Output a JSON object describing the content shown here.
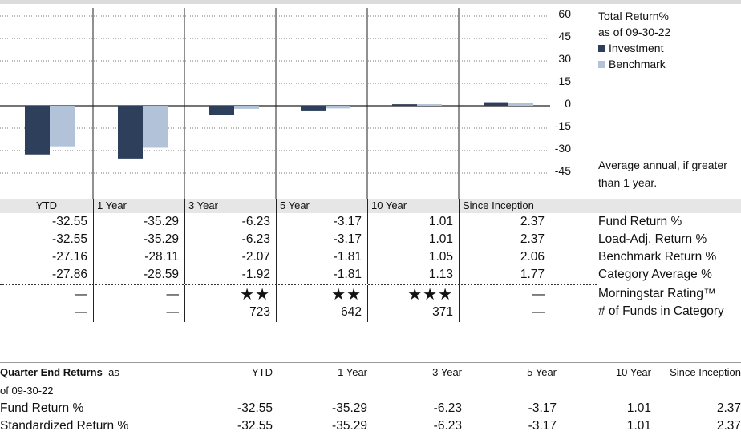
{
  "chart_data": {
    "type": "bar",
    "categories": [
      "YTD",
      "1 Year",
      "3 Year",
      "5 Year",
      "10 Year",
      "Since Inception"
    ],
    "series": [
      {
        "name": "Investment",
        "color": "#2e3f5c",
        "values": [
          -32.55,
          -35.29,
          -6.23,
          -3.17,
          1.01,
          2.37
        ]
      },
      {
        "name": "Benchmark",
        "color": "#b2c2d9",
        "values": [
          -27.16,
          -28.11,
          -2.07,
          -1.81,
          1.05,
          2.06
        ]
      }
    ],
    "yticks": [
      60,
      45,
      30,
      15,
      0,
      -15,
      -30,
      -45
    ],
    "ylim": [
      -45,
      60
    ],
    "title": "Total Return%",
    "subtitle": "as of 09-30-22",
    "note": "Average annual, if greater than 1 year."
  },
  "table": {
    "headers": [
      "YTD",
      "1 Year",
      "3 Year",
      "5 Year",
      "10 Year",
      "Since Inception"
    ],
    "rows": [
      {
        "label": "Fund Return %",
        "values": [
          "-32.55",
          "-35.29",
          "-6.23",
          "-3.17",
          "1.01",
          "2.37"
        ]
      },
      {
        "label": "Load-Adj. Return %",
        "values": [
          "-32.55",
          "-35.29",
          "-6.23",
          "-3.17",
          "1.01",
          "2.37"
        ]
      },
      {
        "label": "Benchmark Return %",
        "values": [
          "-27.16",
          "-28.11",
          "-2.07",
          "-1.81",
          "1.05",
          "2.06"
        ]
      },
      {
        "label": "Category Average %",
        "values": [
          "-27.86",
          "-28.59",
          "-1.92",
          "-1.81",
          "1.13",
          "1.77"
        ]
      }
    ],
    "rating": {
      "label": "Morningstar Rating™",
      "values": [
        "—",
        "—",
        "★★",
        "★★",
        "★★★",
        "—"
      ]
    },
    "funds": {
      "label": "# of Funds in Category",
      "values": [
        "—",
        "—",
        "723",
        "642",
        "371",
        "—"
      ]
    }
  },
  "quarter": {
    "title": "Quarter End Returns",
    "as_word": "as",
    "subtitle": "of 09-30-22",
    "headers": [
      "YTD",
      "1 Year",
      "3 Year",
      "5 Year",
      "10 Year",
      "Since Inception"
    ],
    "rows": [
      {
        "label": "Fund Return %",
        "values": [
          "-32.55",
          "-35.29",
          "-6.23",
          "-3.17",
          "1.01",
          "2.37"
        ]
      },
      {
        "label": "Standardized Return %",
        "values": [
          "-32.55",
          "-35.29",
          "-6.23",
          "-3.17",
          "1.01",
          "2.37"
        ]
      }
    ]
  }
}
